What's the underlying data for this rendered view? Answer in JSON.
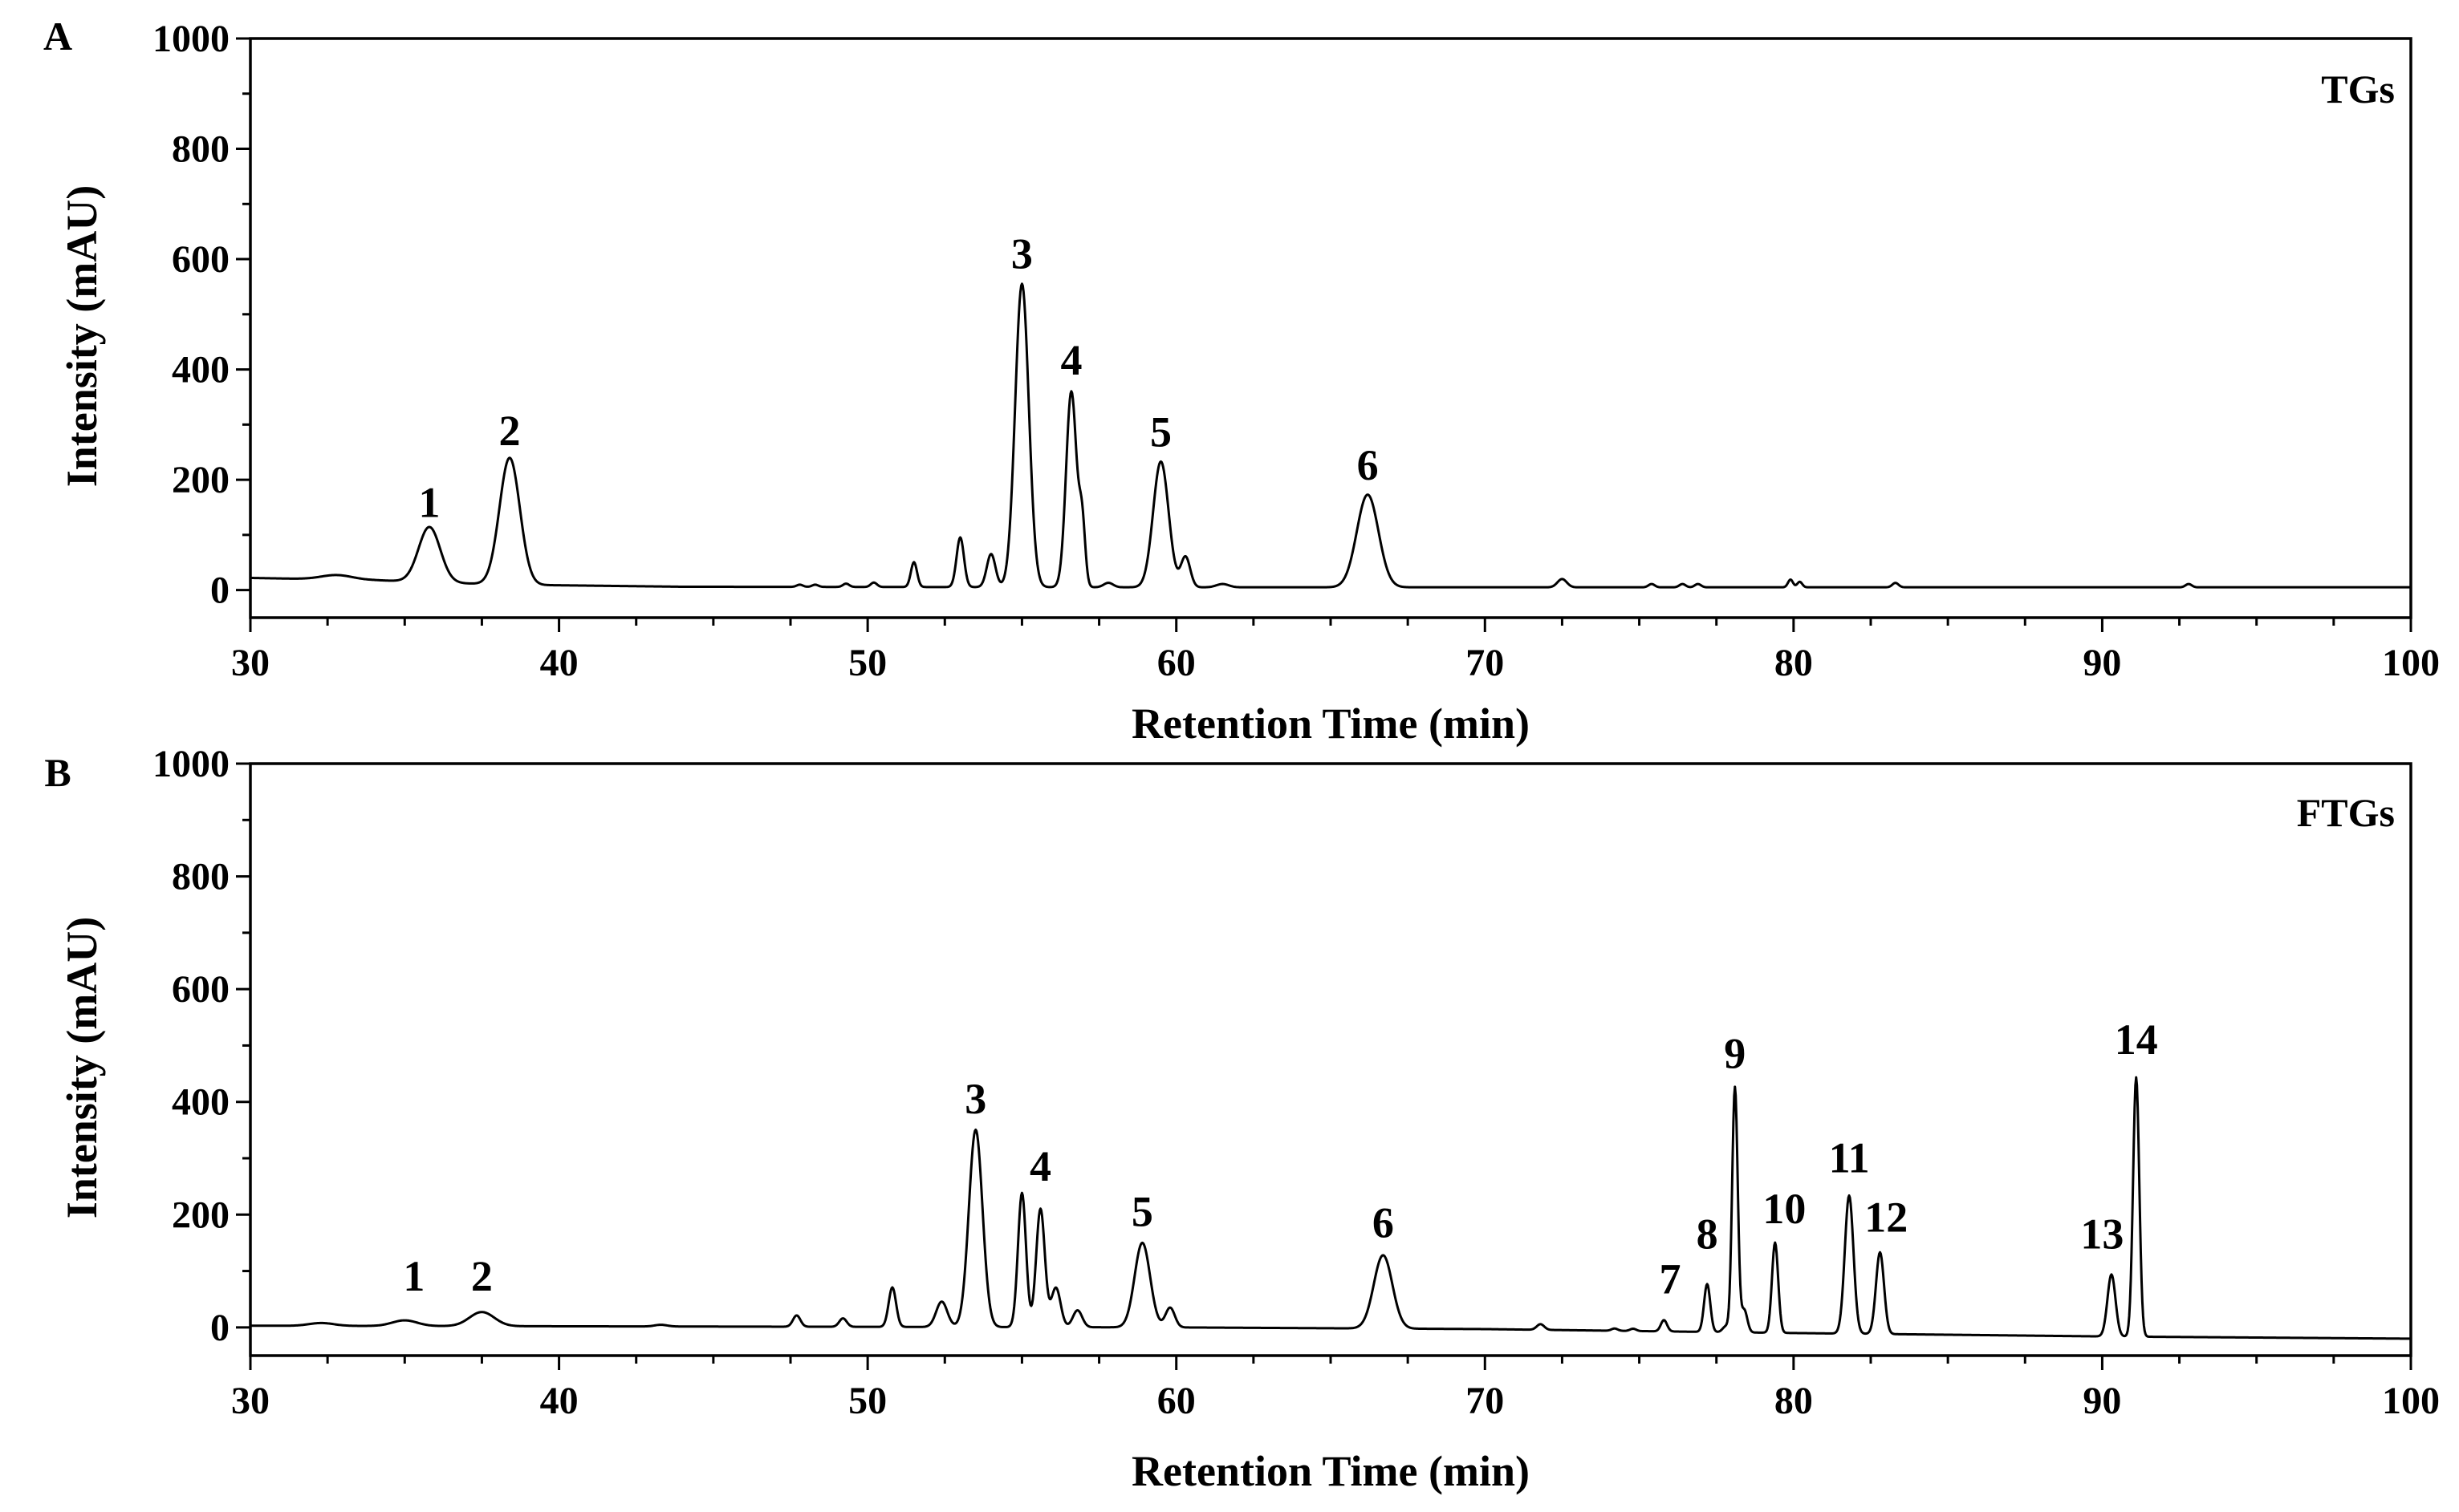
{
  "chart_data": [
    {
      "type": "line",
      "panel_letter": "A",
      "panel_title": "TGs",
      "xlabel": "Retention Time (min)",
      "ylabel": "Intensity (mAU)",
      "xlim": [
        30,
        100
      ],
      "ylim": [
        -50,
        1000
      ],
      "xticks": [
        "30",
        "40",
        "50",
        "60",
        "70",
        "80",
        "90",
        "100"
      ],
      "yticks": [
        "0",
        "200",
        "400",
        "600",
        "800",
        "1000"
      ],
      "baseline": [
        [
          30,
          22
        ],
        [
          34,
          18
        ],
        [
          38,
          10
        ],
        [
          44,
          6
        ],
        [
          60,
          5
        ],
        [
          100,
          5
        ]
      ],
      "peaks": [
        [
          32.8,
          8,
          0.5
        ],
        [
          35.8,
          100,
          0.35
        ],
        [
          38.4,
          230,
          0.33
        ],
        [
          47.8,
          4,
          0.1
        ],
        [
          48.3,
          4,
          0.1
        ],
        [
          49.3,
          6,
          0.1
        ],
        [
          50.2,
          8,
          0.1
        ],
        [
          51.5,
          45,
          0.1
        ],
        [
          53.0,
          90,
          0.12
        ],
        [
          54.0,
          60,
          0.14
        ],
        [
          55.0,
          550,
          0.22
        ],
        [
          56.6,
          355,
          0.17
        ],
        [
          56.95,
          110,
          0.1
        ],
        [
          57.8,
          8,
          0.15
        ],
        [
          59.5,
          228,
          0.25
        ],
        [
          60.3,
          55,
          0.15
        ],
        [
          61.5,
          6,
          0.2
        ],
        [
          66.2,
          168,
          0.35
        ],
        [
          72.5,
          15,
          0.15
        ],
        [
          75.4,
          6,
          0.1
        ],
        [
          76.4,
          6,
          0.1
        ],
        [
          76.9,
          6,
          0.1
        ],
        [
          79.9,
          14,
          0.08
        ],
        [
          80.2,
          10,
          0.08
        ],
        [
          83.3,
          8,
          0.1
        ],
        [
          92.8,
          6,
          0.1
        ]
      ],
      "peak_labels": [
        {
          "label": "1",
          "x": 35.8,
          "y": 112
        },
        {
          "label": "2",
          "x": 38.4,
          "y": 242
        },
        {
          "label": "3",
          "x": 55.0,
          "y": 563
        },
        {
          "label": "4",
          "x": 56.6,
          "y": 370
        },
        {
          "label": "5",
          "x": 59.5,
          "y": 240
        },
        {
          "label": "6",
          "x": 66.2,
          "y": 180
        }
      ]
    },
    {
      "type": "line",
      "panel_letter": "B",
      "panel_title": "FTGs",
      "xlabel": "Retention Time (min)",
      "ylabel": "Intensity (mAU)",
      "xlim": [
        30,
        100
      ],
      "ylim": [
        -50,
        1000
      ],
      "xticks": [
        "30",
        "40",
        "50",
        "60",
        "70",
        "80",
        "90",
        "100"
      ],
      "yticks": [
        "0",
        "200",
        "400",
        "600",
        "800",
        "1000"
      ],
      "baseline": [
        [
          30,
          3
        ],
        [
          40,
          2
        ],
        [
          50,
          1
        ],
        [
          60,
          0
        ],
        [
          70,
          -3
        ],
        [
          80,
          -10
        ],
        [
          90,
          -16
        ],
        [
          100,
          -20
        ]
      ],
      "peaks": [
        [
          32.3,
          5,
          0.4
        ],
        [
          35.0,
          10,
          0.4
        ],
        [
          37.5,
          25,
          0.4
        ],
        [
          43.3,
          3,
          0.2
        ],
        [
          47.7,
          20,
          0.12
        ],
        [
          49.2,
          15,
          0.12
        ],
        [
          50.8,
          70,
          0.12
        ],
        [
          52.4,
          45,
          0.18
        ],
        [
          53.5,
          350,
          0.22
        ],
        [
          55.0,
          238,
          0.13
        ],
        [
          55.6,
          210,
          0.14
        ],
        [
          56.1,
          70,
          0.15
        ],
        [
          56.8,
          30,
          0.15
        ],
        [
          58.9,
          150,
          0.25
        ],
        [
          59.8,
          35,
          0.15
        ],
        [
          66.7,
          130,
          0.3
        ],
        [
          71.8,
          10,
          0.12
        ],
        [
          74.2,
          4,
          0.1
        ],
        [
          74.8,
          4,
          0.1
        ],
        [
          75.8,
          20,
          0.1
        ],
        [
          77.2,
          85,
          0.1
        ],
        [
          77.8,
          10,
          0.1
        ],
        [
          78.1,
          435,
          0.09
        ],
        [
          78.4,
          40,
          0.1
        ],
        [
          79.4,
          160,
          0.1
        ],
        [
          81.8,
          245,
          0.14
        ],
        [
          82.8,
          145,
          0.13
        ],
        [
          90.3,
          110,
          0.13
        ],
        [
          91.1,
          460,
          0.1
        ]
      ],
      "peak_labels": [
        {
          "label": "1",
          "x": 35.3,
          "y": 45
        },
        {
          "label": "2",
          "x": 37.5,
          "y": 45
        },
        {
          "label": "3",
          "x": 53.5,
          "y": 360
        },
        {
          "label": "4",
          "x": 55.6,
          "y": 240
        },
        {
          "label": "5",
          "x": 58.9,
          "y": 160
        },
        {
          "label": "6",
          "x": 66.7,
          "y": 140
        },
        {
          "label": "7",
          "x": 76.0,
          "y": 40
        },
        {
          "label": "8",
          "x": 77.2,
          "y": 120
        },
        {
          "label": "9",
          "x": 78.1,
          "y": 440
        },
        {
          "label": "10",
          "x": 79.7,
          "y": 165
        },
        {
          "label": "11",
          "x": 81.8,
          "y": 255
        },
        {
          "label": "12",
          "x": 83.0,
          "y": 150
        },
        {
          "label": "13",
          "x": 90.0,
          "y": 120
        },
        {
          "label": "14",
          "x": 91.1,
          "y": 465
        }
      ]
    }
  ]
}
